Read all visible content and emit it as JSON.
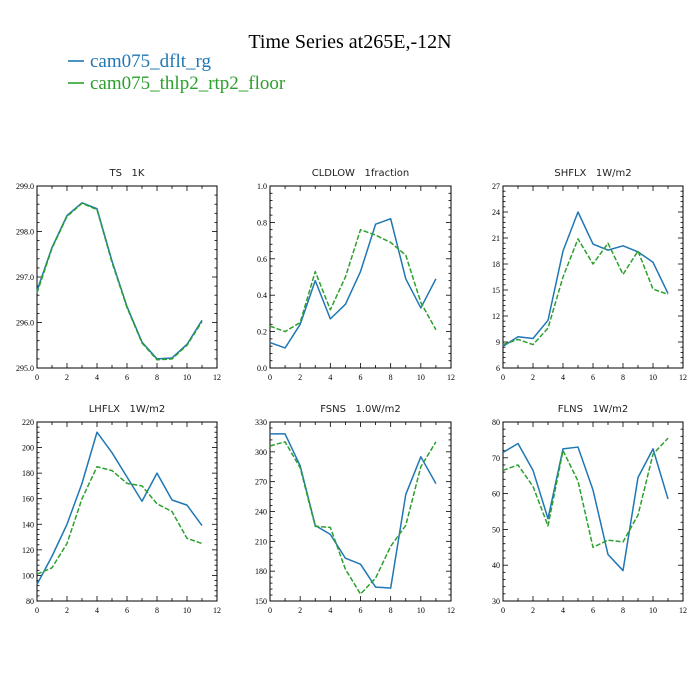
{
  "figure": {
    "title": "Time Series at265E,-12N",
    "legend": [
      {
        "label": "cam075_dflt_rg",
        "color": "#1f77b4"
      },
      {
        "label": "cam075_thlp2_rtp2_floor",
        "color": "#2ca02c"
      }
    ]
  },
  "chart_data": [
    {
      "type": "line",
      "title": "TS   1K",
      "xlim": [
        0,
        12
      ],
      "xticks": [
        0,
        2,
        4,
        6,
        8,
        10,
        12
      ],
      "ylim": [
        295.0,
        299.0
      ],
      "yticks": [
        "295.0",
        "296.0",
        "297.0",
        "298.0",
        "299.0"
      ],
      "x": [
        0,
        1,
        2,
        3,
        4,
        5,
        6,
        7,
        8,
        9,
        10,
        11
      ],
      "series": [
        {
          "name": "cam075_dflt_rg",
          "values": [
            296.7,
            297.65,
            298.35,
            298.63,
            298.5,
            297.35,
            296.35,
            295.57,
            295.2,
            295.22,
            295.52,
            296.05
          ]
        },
        {
          "name": "cam075_thlp2_rtp2_floor",
          "values": [
            296.65,
            297.63,
            298.33,
            298.62,
            298.48,
            297.32,
            296.33,
            295.55,
            295.18,
            295.2,
            295.5,
            296.02
          ]
        }
      ]
    },
    {
      "type": "line",
      "title": "CLDLOW   1fraction",
      "xlim": [
        0,
        12
      ],
      "xticks": [
        0,
        2,
        4,
        6,
        8,
        10,
        12
      ],
      "ylim": [
        0.0,
        1.0
      ],
      "yticks": [
        "0.0",
        "0.2",
        "0.4",
        "0.6",
        "0.8",
        "1.0"
      ],
      "x": [
        0,
        1,
        2,
        3,
        4,
        5,
        6,
        7,
        8,
        9,
        10,
        11
      ],
      "series": [
        {
          "name": "cam075_dflt_rg",
          "values": [
            0.14,
            0.11,
            0.24,
            0.48,
            0.27,
            0.35,
            0.53,
            0.79,
            0.82,
            0.49,
            0.33,
            0.49
          ]
        },
        {
          "name": "cam075_thlp2_rtp2_floor",
          "values": [
            0.23,
            0.2,
            0.25,
            0.53,
            0.32,
            0.5,
            0.76,
            0.73,
            0.69,
            0.62,
            0.36,
            0.21
          ]
        }
      ]
    },
    {
      "type": "line",
      "title": "SHFLX   1W/m2",
      "xlim": [
        0,
        12
      ],
      "xticks": [
        0,
        2,
        4,
        6,
        8,
        10,
        12
      ],
      "ylim": [
        6,
        27
      ],
      "yticks": [
        "6",
        "9",
        "12",
        "15",
        "18",
        "21",
        "24",
        "27"
      ],
      "x": [
        0,
        1,
        2,
        3,
        4,
        5,
        6,
        7,
        8,
        9,
        10,
        11
      ],
      "series": [
        {
          "name": "cam075_dflt_rg",
          "values": [
            8.5,
            9.6,
            9.4,
            11.5,
            19.5,
            24.0,
            20.3,
            19.6,
            20.1,
            19.4,
            18.2,
            14.6
          ]
        },
        {
          "name": "cam075_thlp2_rtp2_floor",
          "values": [
            8.7,
            9.3,
            8.7,
            10.6,
            16.5,
            20.9,
            18.0,
            20.4,
            16.8,
            19.5,
            15.1,
            14.5
          ]
        }
      ]
    },
    {
      "type": "line",
      "title": "LHFLX   1W/m2",
      "xlim": [
        0,
        12
      ],
      "xticks": [
        0,
        2,
        4,
        6,
        8,
        10,
        12
      ],
      "ylim": [
        80,
        220
      ],
      "yticks": [
        "80",
        "100",
        "120",
        "140",
        "160",
        "180",
        "200",
        "220"
      ],
      "x": [
        0,
        1,
        2,
        3,
        4,
        5,
        6,
        7,
        8,
        9,
        10,
        11
      ],
      "series": [
        {
          "name": "cam075_dflt_rg",
          "values": [
            93,
            115,
            140,
            172,
            212,
            196,
            177,
            158,
            180,
            159,
            155,
            139
          ]
        },
        {
          "name": "cam075_thlp2_rtp2_floor",
          "values": [
            101,
            106,
            125,
            160,
            185,
            182,
            172,
            170,
            156,
            150,
            129,
            125
          ]
        }
      ]
    },
    {
      "type": "line",
      "title": "FSNS   1.0W/m2",
      "xlim": [
        0,
        12
      ],
      "xticks": [
        0,
        2,
        4,
        6,
        8,
        10,
        12
      ],
      "ylim": [
        150,
        330
      ],
      "yticks": [
        "150",
        "180",
        "210",
        "240",
        "270",
        "300",
        "330"
      ],
      "x": [
        0,
        1,
        2,
        3,
        4,
        5,
        6,
        7,
        8,
        9,
        10,
        11
      ],
      "series": [
        {
          "name": "cam075_dflt_rg",
          "values": [
            318,
            318,
            286,
            226,
            217,
            193,
            187,
            164,
            163,
            257,
            295,
            268
          ]
        },
        {
          "name": "cam075_thlp2_rtp2_floor",
          "values": [
            306,
            310,
            284,
            225,
            224,
            182,
            157,
            173,
            205,
            226,
            285,
            310
          ]
        }
      ]
    },
    {
      "type": "line",
      "title": "FLNS   1W/m2",
      "xlim": [
        0,
        12
      ],
      "xticks": [
        0,
        2,
        4,
        6,
        8,
        10,
        12
      ],
      "ylim": [
        30,
        80
      ],
      "yticks": [
        "30",
        "40",
        "50",
        "60",
        "70",
        "80"
      ],
      "x": [
        0,
        1,
        2,
        3,
        4,
        5,
        6,
        7,
        8,
        9,
        10,
        11
      ],
      "series": [
        {
          "name": "cam075_dflt_rg",
          "values": [
            71.5,
            74.0,
            66.5,
            53.0,
            72.5,
            73.0,
            61.0,
            43.0,
            38.5,
            64.5,
            72.5,
            58.5
          ]
        },
        {
          "name": "cam075_thlp2_rtp2_floor",
          "values": [
            66.5,
            68.0,
            62.0,
            51.0,
            72.0,
            63.5,
            45.0,
            47.0,
            46.5,
            54.0,
            71.0,
            75.5
          ]
        }
      ]
    }
  ]
}
